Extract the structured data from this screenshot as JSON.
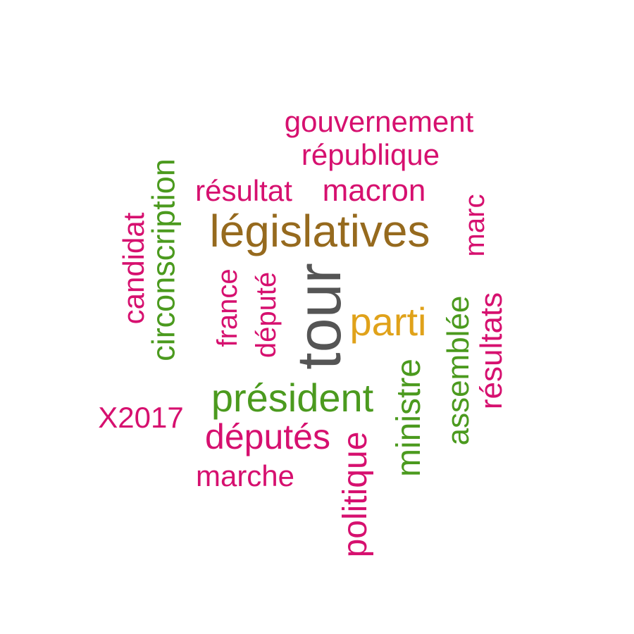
{
  "colors": {
    "magenta": "#d6106f",
    "green": "#4b9a1e",
    "brown": "#966a1e",
    "orange": "#e0a21a",
    "gray": "#555555"
  },
  "words": {
    "gouvernement": "gouvernement",
    "republique": "république",
    "resultat": "résultat",
    "macron": "macron",
    "legislatives": "législatives",
    "marc": "marc",
    "candidat": "candidat",
    "circonscription": "circonscription",
    "france": "france",
    "depute": "député",
    "tour": "tour",
    "parti": "parti",
    "assemblee": "assemblée",
    "resultats": "résultats",
    "president": "président",
    "ministre": "ministre",
    "x2017": "X2017",
    "deputes": "députés",
    "politique": "politique",
    "marche": "marche"
  }
}
